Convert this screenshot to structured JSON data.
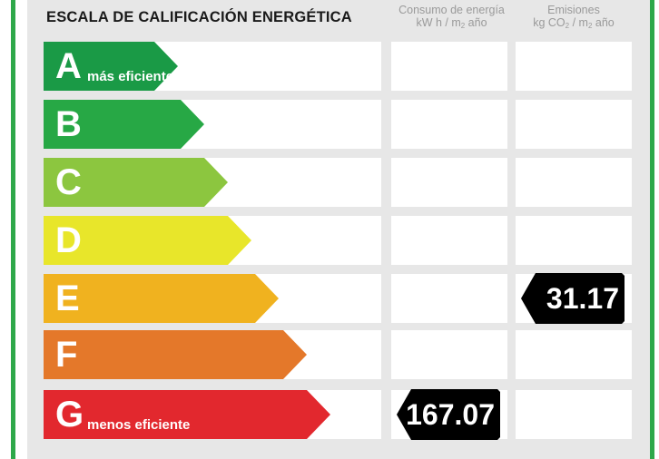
{
  "header": {
    "title": "ESCALA DE CALIFICACIÓN ENERGÉTICA",
    "consumption": {
      "line1": "Consumo de energía",
      "line2_a": "kW h / m",
      "line2_sub": "2",
      "line2_b": " año"
    },
    "emissions": {
      "line1": "Emisiones",
      "line2_a": "kg CO",
      "line2_sub1": "2",
      "line2_mid": " / m",
      "line2_sub2": "2",
      "line2_b": " año"
    }
  },
  "ratings": [
    {
      "letter": "A",
      "caption": "más eficiente",
      "color": "#1a9a46"
    },
    {
      "letter": "B",
      "caption": "",
      "color": "#27a845"
    },
    {
      "letter": "C",
      "caption": "",
      "color": "#8cc63f"
    },
    {
      "letter": "D",
      "caption": "",
      "color": "#e8e62a"
    },
    {
      "letter": "E",
      "caption": "",
      "color": "#f0b21f"
    },
    {
      "letter": "F",
      "caption": "",
      "color": "#e4782a"
    },
    {
      "letter": "G",
      "caption": "menos eficiente",
      "color": "#e2282e"
    }
  ],
  "consumption_indicator": {
    "rating": "G",
    "value": "167.07"
  },
  "emissions_indicator": {
    "rating": "E",
    "value": "31.17"
  }
}
